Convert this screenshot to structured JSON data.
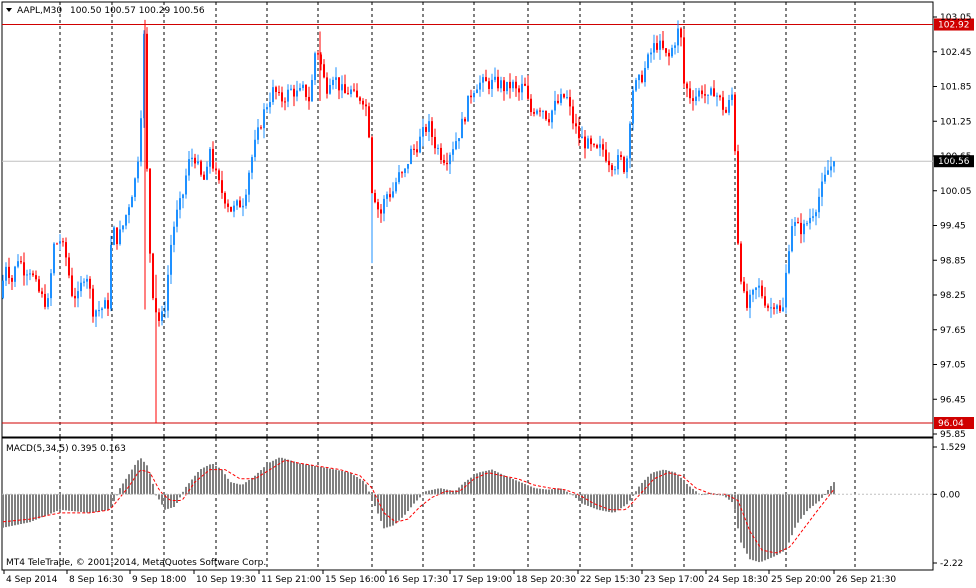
{
  "header": {
    "symbol_label": "AAPL,M30",
    "ohlc_label": "100.50 100.57 100.29 100.56"
  },
  "macd_header": "MACD(5,34,5) 0.395 0.163",
  "footer": "MT4 TeleTrade, © 2001-2014, MetaQuotes Software Corp.",
  "colors": {
    "bull": "#1E90FF",
    "bear": "#FF0000",
    "grid": "#000000",
    "hline": "#D00000",
    "macd_hist": "#808080",
    "signal": "#FF0000",
    "bid_line": "#C0C0C0"
  },
  "chart_data": [
    {
      "type": "candlestick",
      "ylim": [
        95.85,
        103.05
      ],
      "y_ticks": [
        "103.05",
        "102.45",
        "101.85",
        "101.25",
        "100.65",
        "100.05",
        "99.45",
        "98.85",
        "98.25",
        "97.65",
        "97.05",
        "96.45",
        "95.85"
      ],
      "y_tick_values": [
        103.05,
        102.45,
        101.85,
        101.25,
        100.65,
        100.05,
        99.45,
        98.85,
        98.25,
        97.65,
        97.05,
        96.45,
        95.85
      ],
      "horizontal_lines": [
        {
          "value": 102.92,
          "label": "102.92"
        },
        {
          "value": 96.04,
          "label": "96.04"
        }
      ],
      "current_price": {
        "value": 100.56,
        "label": "100.56"
      },
      "x_labels": [
        "4 Sep 2014",
        "8 Sep 16:30",
        "9 Sep 18:00",
        "10 Sep 19:30",
        "11 Sep 21:00",
        "15 Sep 16:00",
        "16 Sep 17:30",
        "17 Sep 19:00",
        "18 Sep 20:30",
        "22 Sep 15:30",
        "23 Sep 17:00",
        "24 Sep 18:30",
        "25 Sep 20:00",
        "26 Sep 21:30"
      ],
      "keypoints": [
        [
          0,
          98.2
        ],
        [
          6,
          98.8
        ],
        [
          12,
          98.5
        ],
        [
          18,
          98.9
        ],
        [
          24,
          98.7
        ],
        [
          30,
          98.7
        ],
        [
          36,
          98.4
        ],
        [
          42,
          98.2
        ],
        [
          48,
          98.1
        ],
        [
          54,
          99.1
        ],
        [
          60,
          99.2
        ],
        [
          66,
          98.9
        ],
        [
          72,
          98.3
        ],
        [
          78,
          98.2
        ],
        [
          84,
          98.6
        ],
        [
          88,
          98.6
        ],
        [
          92,
          98.0
        ],
        [
          100,
          98.0
        ],
        [
          108,
          98.1
        ],
        [
          112,
          99.4
        ],
        [
          118,
          99.2
        ],
        [
          124,
          99.5
        ],
        [
          130,
          99.9
        ],
        [
          136,
          100.3
        ],
        [
          140,
          101.0
        ],
        [
          144,
          102.7
        ],
        [
          148,
          99.6
        ],
        [
          152,
          98.4
        ],
        [
          158,
          97.8
        ],
        [
          164,
          97.9
        ],
        [
          168,
          98.6
        ],
        [
          172,
          99.3
        ],
        [
          176,
          99.6
        ],
        [
          182,
          99.9
        ],
        [
          188,
          100.5
        ],
        [
          194,
          100.7
        ],
        [
          200,
          100.3
        ],
        [
          206,
          100.2
        ],
        [
          210,
          100.8
        ],
        [
          214,
          100.4
        ],
        [
          220,
          100.1
        ],
        [
          226,
          99.9
        ],
        [
          232,
          99.7
        ],
        [
          238,
          99.8
        ],
        [
          244,
          99.9
        ],
        [
          250,
          100.5
        ],
        [
          256,
          100.9
        ],
        [
          262,
          101.3
        ],
        [
          268,
          101.6
        ],
        [
          274,
          101.8
        ],
        [
          280,
          101.6
        ],
        [
          286,
          101.7
        ],
        [
          292,
          101.8
        ],
        [
          298,
          101.7
        ],
        [
          304,
          101.8
        ],
        [
          310,
          101.6
        ],
        [
          316,
          102.6
        ],
        [
          320,
          102.3
        ],
        [
          326,
          101.8
        ],
        [
          332,
          102.1
        ],
        [
          338,
          101.9
        ],
        [
          344,
          101.7
        ],
        [
          350,
          101.8
        ],
        [
          356,
          101.6
        ],
        [
          362,
          101.7
        ],
        [
          368,
          101.4
        ],
        [
          372,
          100.1
        ],
        [
          376,
          99.9
        ],
        [
          380,
          99.6
        ],
        [
          386,
          100.0
        ],
        [
          392,
          100.0
        ],
        [
          398,
          100.3
        ],
        [
          404,
          100.3
        ],
        [
          410,
          100.7
        ],
        [
          416,
          100.8
        ],
        [
          422,
          101.0
        ],
        [
          428,
          101.2
        ],
        [
          434,
          100.9
        ],
        [
          440,
          100.7
        ],
        [
          446,
          100.6
        ],
        [
          452,
          100.8
        ],
        [
          458,
          101.0
        ],
        [
          464,
          101.3
        ],
        [
          470,
          101.7
        ],
        [
          476,
          101.9
        ],
        [
          482,
          101.9
        ],
        [
          488,
          101.9
        ],
        [
          494,
          101.9
        ],
        [
          500,
          101.9
        ],
        [
          506,
          101.8
        ],
        [
          512,
          101.9
        ],
        [
          518,
          101.7
        ],
        [
          524,
          101.9
        ],
        [
          530,
          101.4
        ],
        [
          536,
          101.5
        ],
        [
          542,
          101.5
        ],
        [
          548,
          101.3
        ],
        [
          554,
          101.5
        ],
        [
          560,
          101.6
        ],
        [
          566,
          101.7
        ],
        [
          572,
          101.3
        ],
        [
          578,
          101.0
        ],
        [
          584,
          100.9
        ],
        [
          590,
          100.8
        ],
        [
          596,
          100.7
        ],
        [
          602,
          100.8
        ],
        [
          608,
          100.6
        ],
        [
          614,
          100.5
        ],
        [
          620,
          100.6
        ],
        [
          626,
          100.4
        ],
        [
          632,
          101.8
        ],
        [
          638,
          101.9
        ],
        [
          644,
          102.1
        ],
        [
          650,
          102.4
        ],
        [
          656,
          102.6
        ],
        [
          662,
          102.5
        ],
        [
          668,
          102.3
        ],
        [
          674,
          102.6
        ],
        [
          680,
          102.9
        ],
        [
          684,
          101.9
        ],
        [
          690,
          101.7
        ],
        [
          696,
          101.7
        ],
        [
          702,
          101.8
        ],
        [
          708,
          101.6
        ],
        [
          714,
          101.8
        ],
        [
          720,
          101.6
        ],
        [
          726,
          101.4
        ],
        [
          732,
          101.7
        ],
        [
          735,
          100.8
        ],
        [
          738,
          99.2
        ],
        [
          742,
          98.4
        ],
        [
          746,
          98.0
        ],
        [
          752,
          98.2
        ],
        [
          758,
          98.4
        ],
        [
          764,
          98.2
        ],
        [
          770,
          98.0
        ],
        [
          776,
          98.2
        ],
        [
          782,
          97.8
        ],
        [
          788,
          99.0
        ],
        [
          792,
          99.5
        ],
        [
          798,
          99.4
        ],
        [
          804,
          99.4
        ],
        [
          810,
          99.6
        ],
        [
          816,
          99.8
        ],
        [
          822,
          100.1
        ],
        [
          828,
          100.4
        ],
        [
          834,
          100.56
        ]
      ]
    },
    {
      "type": "bar",
      "name": "MACD(5,34,5)",
      "ylim": [
        -2.22,
        1.529
      ],
      "y_ticks": [
        "1.529",
        "0.00",
        "-2.22"
      ],
      "y_tick_values": [
        1.529,
        0.0,
        -2.22
      ],
      "last_value": 0.395,
      "last_signal": 0.163,
      "keypoints": [
        [
          0,
          -1.1
        ],
        [
          30,
          -0.9
        ],
        [
          60,
          -0.5
        ],
        [
          90,
          -0.6
        ],
        [
          110,
          -0.5
        ],
        [
          120,
          0.2
        ],
        [
          130,
          0.7
        ],
        [
          140,
          1.2
        ],
        [
          148,
          0.9
        ],
        [
          156,
          0.0
        ],
        [
          165,
          -0.5
        ],
        [
          175,
          -0.4
        ],
        [
          185,
          0.2
        ],
        [
          200,
          0.8
        ],
        [
          212,
          1.0
        ],
        [
          222,
          0.8
        ],
        [
          230,
          0.4
        ],
        [
          242,
          0.3
        ],
        [
          255,
          0.6
        ],
        [
          268,
          1.0
        ],
        [
          280,
          1.2
        ],
        [
          300,
          1.0
        ],
        [
          318,
          0.9
        ],
        [
          335,
          0.8
        ],
        [
          350,
          0.7
        ],
        [
          365,
          0.4
        ],
        [
          374,
          -0.3
        ],
        [
          384,
          -1.1
        ],
        [
          394,
          -1.0
        ],
        [
          404,
          -0.7
        ],
        [
          414,
          -0.3
        ],
        [
          426,
          0.1
        ],
        [
          440,
          0.2
        ],
        [
          455,
          0.1
        ],
        [
          465,
          0.4
        ],
        [
          478,
          0.7
        ],
        [
          492,
          0.8
        ],
        [
          505,
          0.6
        ],
        [
          520,
          0.4
        ],
        [
          535,
          0.2
        ],
        [
          548,
          0.15
        ],
        [
          560,
          0.2
        ],
        [
          572,
          0.0
        ],
        [
          582,
          -0.3
        ],
        [
          598,
          -0.5
        ],
        [
          614,
          -0.6
        ],
        [
          628,
          -0.3
        ],
        [
          640,
          0.3
        ],
        [
          652,
          0.7
        ],
        [
          664,
          0.8
        ],
        [
          676,
          0.7
        ],
        [
          688,
          0.3
        ],
        [
          700,
          0.0
        ],
        [
          712,
          0.05
        ],
        [
          724,
          -0.05
        ],
        [
          734,
          -0.3
        ],
        [
          740,
          -1.5
        ],
        [
          750,
          -2.1
        ],
        [
          760,
          -2.2
        ],
        [
          775,
          -2.0
        ],
        [
          786,
          -1.8
        ],
        [
          796,
          -1.0
        ],
        [
          808,
          -0.5
        ],
        [
          820,
          -0.2
        ],
        [
          834,
          0.395
        ]
      ],
      "signal_keypoints": [
        [
          0,
          -0.9
        ],
        [
          30,
          -0.8
        ],
        [
          60,
          -0.6
        ],
        [
          90,
          -0.6
        ],
        [
          110,
          -0.5
        ],
        [
          120,
          -0.1
        ],
        [
          130,
          0.3
        ],
        [
          140,
          0.8
        ],
        [
          150,
          0.7
        ],
        [
          160,
          0.1
        ],
        [
          170,
          -0.2
        ],
        [
          182,
          -0.2
        ],
        [
          195,
          0.4
        ],
        [
          210,
          0.8
        ],
        [
          225,
          0.8
        ],
        [
          240,
          0.5
        ],
        [
          255,
          0.5
        ],
        [
          270,
          0.8
        ],
        [
          285,
          1.1
        ],
        [
          300,
          1.0
        ],
        [
          320,
          0.9
        ],
        [
          340,
          0.8
        ],
        [
          360,
          0.6
        ],
        [
          372,
          0.2
        ],
        [
          384,
          -0.6
        ],
        [
          396,
          -0.9
        ],
        [
          408,
          -0.8
        ],
        [
          420,
          -0.4
        ],
        [
          432,
          -0.1
        ],
        [
          446,
          0.1
        ],
        [
          460,
          0.1
        ],
        [
          474,
          0.5
        ],
        [
          488,
          0.7
        ],
        [
          502,
          0.6
        ],
        [
          518,
          0.5
        ],
        [
          534,
          0.3
        ],
        [
          550,
          0.2
        ],
        [
          565,
          0.15
        ],
        [
          578,
          0.0
        ],
        [
          594,
          -0.3
        ],
        [
          610,
          -0.5
        ],
        [
          626,
          -0.5
        ],
        [
          640,
          0.0
        ],
        [
          654,
          0.5
        ],
        [
          668,
          0.7
        ],
        [
          682,
          0.6
        ],
        [
          696,
          0.2
        ],
        [
          712,
          0.0
        ],
        [
          726,
          0.0
        ],
        [
          738,
          -0.2
        ],
        [
          750,
          -1.2
        ],
        [
          762,
          -1.8
        ],
        [
          776,
          -1.9
        ],
        [
          790,
          -1.7
        ],
        [
          804,
          -1.1
        ],
        [
          818,
          -0.5
        ],
        [
          834,
          0.163
        ]
      ]
    }
  ]
}
